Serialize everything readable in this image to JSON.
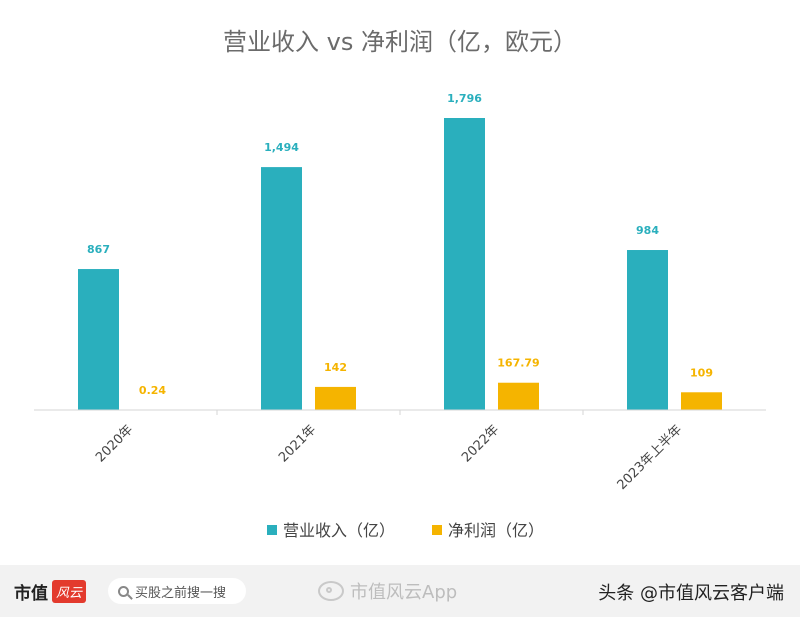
{
  "chart_data": {
    "type": "bar",
    "title": "营业收入 vs 净利润（亿，欧元）",
    "categories": [
      "2020年",
      "2021年",
      "2022年",
      "2023年上半年"
    ],
    "series": [
      {
        "name": "营业收入（亿）",
        "values": [
          867,
          1494,
          1796,
          984
        ],
        "labels": [
          "867",
          "1,494",
          "1,796",
          "984"
        ],
        "color": "#2aafbd"
      },
      {
        "name": "净利润（亿）",
        "values": [
          0.24,
          142,
          167.79,
          109
        ],
        "labels": [
          "0.24",
          "142",
          "167.79",
          "109"
        ],
        "color": "#f5b400"
      }
    ],
    "ylim": [
      0,
      1796
    ],
    "grid": false,
    "legend_position": "bottom"
  },
  "footer": {
    "brand_text": "市值",
    "brand_badge": "风云",
    "search_placeholder": "买股之前搜一搜",
    "weibo_text": "市值风云App",
    "toutiao_text": "头条 @市值风云客户端"
  }
}
